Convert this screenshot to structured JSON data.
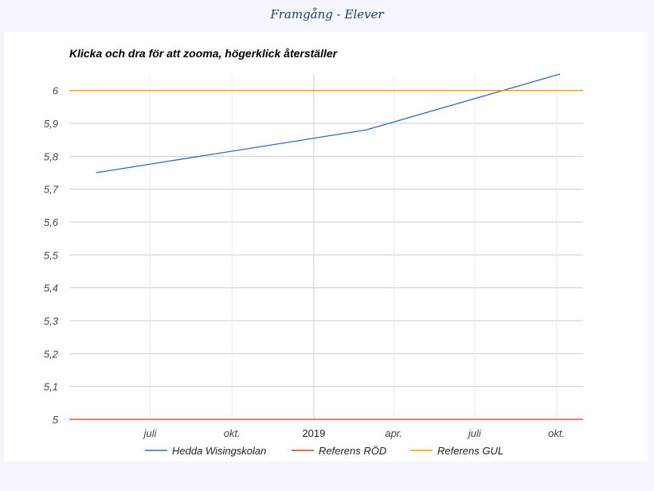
{
  "page": {
    "title": "Framgång - Elever"
  },
  "chart_data": {
    "type": "line",
    "title": "Klicka och dra för att zooma, högerklick återställer",
    "xlabel": "",
    "ylabel": "",
    "x_range": [
      "2018-04-01",
      "2019-10-31"
    ],
    "ylim": [
      5,
      6.05
    ],
    "y_ticks": [
      5,
      5.1,
      5.2,
      5.3,
      5.4,
      5.5,
      5.6,
      5.7,
      5.8,
      5.9,
      6
    ],
    "y_tick_labels": [
      "5",
      "5,1",
      "5,2",
      "5,3",
      "5,4",
      "5,5",
      "5,6",
      "5,7",
      "5,8",
      "5,9",
      "6"
    ],
    "x_ticks": [
      {
        "date": "2018-07-01",
        "label": "juli",
        "major": false
      },
      {
        "date": "2018-10-01",
        "label": "okt.",
        "major": false
      },
      {
        "date": "2019-01-01",
        "label": "2019",
        "major": true
      },
      {
        "date": "2019-04-01",
        "label": "apr.",
        "major": false
      },
      {
        "date": "2019-07-01",
        "label": "juli",
        "major": false
      },
      {
        "date": "2019-10-01",
        "label": "okt.",
        "major": false
      }
    ],
    "grid": true,
    "legend_position": "bottom",
    "series": [
      {
        "name": "Hedda Wisingskolan",
        "color": "#3366cc",
        "points": [
          {
            "x": "2018-05-01",
            "y": 5.75
          },
          {
            "x": "2019-03-01",
            "y": 5.88
          },
          {
            "x": "2019-10-05",
            "y": 6.05
          }
        ]
      },
      {
        "name": "Referens RÖD",
        "color": "#dc3912",
        "points": [
          {
            "x": "2018-04-01",
            "y": 5
          },
          {
            "x": "2019-10-31",
            "y": 5
          }
        ]
      },
      {
        "name": "Referens GUL",
        "color": "#ff9900",
        "points": [
          {
            "x": "2018-04-01",
            "y": 6
          },
          {
            "x": "2019-10-31",
            "y": 6
          }
        ]
      }
    ]
  }
}
